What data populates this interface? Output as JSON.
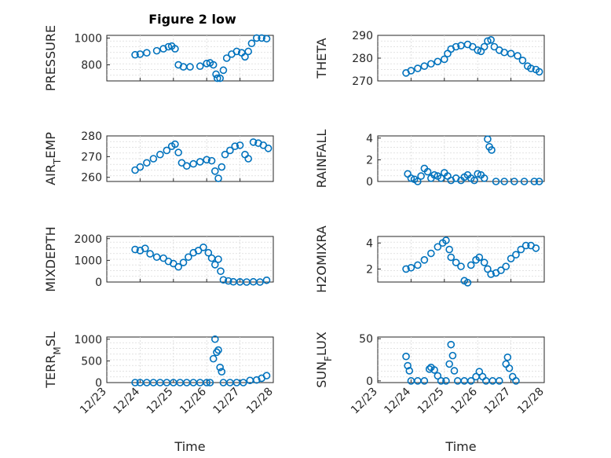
{
  "figure": {
    "title": "Figure 2 low"
  },
  "chart_data": [
    {
      "type": "scatter",
      "ylabel": "PRESSURE",
      "xlabel": "",
      "xlim": [
        0,
        5
      ],
      "ylim": [
        680,
        1020
      ],
      "yticks": [
        800,
        1000
      ],
      "x_ticks": [
        "12/23",
        "12/24",
        "12/25",
        "12/26",
        "12/27",
        "12/28"
      ],
      "x_ticklabels_shown": false,
      "grid": true,
      "color": "#0072BD",
      "points": [
        [
          0.85,
          875
        ],
        [
          1.0,
          880
        ],
        [
          1.2,
          890
        ],
        [
          1.5,
          905
        ],
        [
          1.7,
          920
        ],
        [
          1.85,
          935
        ],
        [
          1.95,
          940
        ],
        [
          2.05,
          920
        ],
        [
          2.15,
          800
        ],
        [
          2.3,
          785
        ],
        [
          2.5,
          785
        ],
        [
          2.8,
          790
        ],
        [
          3.0,
          810
        ],
        [
          3.1,
          815
        ],
        [
          3.2,
          800
        ],
        [
          3.28,
          730
        ],
        [
          3.32,
          700
        ],
        [
          3.4,
          700
        ],
        [
          3.5,
          760
        ],
        [
          3.6,
          850
        ],
        [
          3.75,
          880
        ],
        [
          3.9,
          900
        ],
        [
          4.05,
          890
        ],
        [
          4.15,
          860
        ],
        [
          4.25,
          900
        ],
        [
          4.35,
          960
        ],
        [
          4.5,
          1000
        ],
        [
          4.65,
          1000
        ],
        [
          4.8,
          995
        ]
      ]
    },
    {
      "type": "scatter",
      "ylabel": "THETA",
      "xlabel": "",
      "xlim": [
        0,
        5
      ],
      "ylim": [
        270,
        290
      ],
      "yticks": [
        270,
        280,
        290
      ],
      "x_ticks": [
        "12/23",
        "12/24",
        "12/25",
        "12/26",
        "12/27",
        "12/28"
      ],
      "x_ticklabels_shown": false,
      "grid": true,
      "color": "#0072BD",
      "points": [
        [
          0.85,
          273.5
        ],
        [
          1.0,
          274.5
        ],
        [
          1.2,
          275.5
        ],
        [
          1.4,
          276.5
        ],
        [
          1.6,
          277.5
        ],
        [
          1.8,
          278.5
        ],
        [
          2.0,
          279.5
        ],
        [
          2.1,
          282.0
        ],
        [
          2.2,
          284.0
        ],
        [
          2.35,
          285.0
        ],
        [
          2.5,
          285.5
        ],
        [
          2.7,
          286.0
        ],
        [
          2.85,
          285.0
        ],
        [
          3.0,
          283.5
        ],
        [
          3.1,
          283.0
        ],
        [
          3.2,
          285.0
        ],
        [
          3.3,
          287.5
        ],
        [
          3.4,
          288.0
        ],
        [
          3.5,
          285.0
        ],
        [
          3.65,
          283.5
        ],
        [
          3.8,
          282.5
        ],
        [
          4.0,
          282.0
        ],
        [
          4.2,
          281.0
        ],
        [
          4.35,
          279.0
        ],
        [
          4.5,
          276.5
        ],
        [
          4.6,
          275.5
        ],
        [
          4.75,
          275.0
        ],
        [
          4.85,
          274.0
        ]
      ]
    },
    {
      "type": "scatter",
      "ylabel": "AIR_TEMP",
      "ylabel_parts": [
        "AIR",
        "T",
        "EMP"
      ],
      "xlabel": "",
      "xlim": [
        0,
        5
      ],
      "ylim": [
        258,
        280
      ],
      "yticks": [
        260,
        270,
        280
      ],
      "x_ticks": [
        "12/23",
        "12/24",
        "12/25",
        "12/26",
        "12/27",
        "12/28"
      ],
      "x_ticklabels_shown": false,
      "grid": true,
      "color": "#0072BD",
      "points": [
        [
          0.85,
          263.5
        ],
        [
          1.0,
          265.0
        ],
        [
          1.2,
          267.0
        ],
        [
          1.4,
          269.0
        ],
        [
          1.6,
          271.0
        ],
        [
          1.8,
          273.0
        ],
        [
          1.95,
          275.0
        ],
        [
          2.05,
          276.0
        ],
        [
          2.15,
          272.0
        ],
        [
          2.25,
          267.0
        ],
        [
          2.4,
          265.5
        ],
        [
          2.6,
          266.5
        ],
        [
          2.8,
          267.5
        ],
        [
          3.0,
          268.5
        ],
        [
          3.15,
          268.0
        ],
        [
          3.25,
          263.0
        ],
        [
          3.35,
          259.5
        ],
        [
          3.45,
          265.0
        ],
        [
          3.55,
          271.0
        ],
        [
          3.7,
          273.0
        ],
        [
          3.85,
          275.0
        ],
        [
          4.0,
          275.5
        ],
        [
          4.15,
          271.0
        ],
        [
          4.25,
          269.0
        ],
        [
          4.4,
          277.0
        ],
        [
          4.55,
          276.5
        ],
        [
          4.7,
          275.5
        ],
        [
          4.85,
          274.0
        ]
      ]
    },
    {
      "type": "scatter",
      "ylabel": "RAINFALL",
      "xlabel": "",
      "xlim": [
        0,
        5
      ],
      "ylim": [
        0,
        4.2
      ],
      "yticks": [
        0,
        2,
        4
      ],
      "x_ticks": [
        "12/23",
        "12/24",
        "12/25",
        "12/26",
        "12/27",
        "12/28"
      ],
      "x_ticklabels_shown": false,
      "grid": true,
      "color": "#0072BD",
      "points": [
        [
          0.9,
          0.7
        ],
        [
          1.0,
          0.3
        ],
        [
          1.1,
          0.2
        ],
        [
          1.2,
          0.0
        ],
        [
          1.3,
          0.5
        ],
        [
          1.4,
          1.2
        ],
        [
          1.5,
          0.9
        ],
        [
          1.6,
          0.3
        ],
        [
          1.7,
          0.6
        ],
        [
          1.8,
          0.5
        ],
        [
          1.9,
          0.3
        ],
        [
          2.0,
          0.8
        ],
        [
          2.1,
          0.5
        ],
        [
          2.2,
          0.1
        ],
        [
          2.35,
          0.3
        ],
        [
          2.5,
          0.1
        ],
        [
          2.6,
          0.4
        ],
        [
          2.7,
          0.6
        ],
        [
          2.8,
          0.3
        ],
        [
          2.9,
          0.1
        ],
        [
          3.0,
          0.7
        ],
        [
          3.1,
          0.6
        ],
        [
          3.2,
          0.3
        ],
        [
          3.3,
          3.9
        ],
        [
          3.35,
          3.2
        ],
        [
          3.42,
          2.9
        ],
        [
          3.55,
          0.0
        ],
        [
          3.8,
          0.0
        ],
        [
          4.1,
          0.0
        ],
        [
          4.4,
          0.0
        ],
        [
          4.7,
          0.0
        ],
        [
          4.85,
          0.0
        ]
      ]
    },
    {
      "type": "scatter",
      "ylabel": "MIXDEPTH",
      "xlabel": "",
      "xlim": [
        0,
        5
      ],
      "ylim": [
        0,
        2100
      ],
      "yticks": [
        0,
        1000,
        2000
      ],
      "x_ticks": [
        "12/23",
        "12/24",
        "12/25",
        "12/26",
        "12/27",
        "12/28"
      ],
      "x_ticklabels_shown": false,
      "grid": true,
      "color": "#0072BD",
      "points": [
        [
          0.85,
          1500
        ],
        [
          1.0,
          1450
        ],
        [
          1.15,
          1550
        ],
        [
          1.3,
          1300
        ],
        [
          1.5,
          1150
        ],
        [
          1.7,
          1100
        ],
        [
          1.85,
          950
        ],
        [
          2.0,
          850
        ],
        [
          2.15,
          700
        ],
        [
          2.3,
          900
        ],
        [
          2.45,
          1150
        ],
        [
          2.6,
          1350
        ],
        [
          2.75,
          1450
        ],
        [
          2.9,
          1600
        ],
        [
          3.05,
          1350
        ],
        [
          3.15,
          1100
        ],
        [
          3.25,
          800
        ],
        [
          3.35,
          1050
        ],
        [
          3.42,
          500
        ],
        [
          3.5,
          100
        ],
        [
          3.65,
          50
        ],
        [
          3.8,
          10
        ],
        [
          4.0,
          5
        ],
        [
          4.2,
          0
        ],
        [
          4.4,
          10
        ],
        [
          4.6,
          0
        ],
        [
          4.8,
          80
        ]
      ]
    },
    {
      "type": "scatter",
      "ylabel": "H2OMIXRA",
      "xlabel": "",
      "xlim": [
        0,
        5
      ],
      "ylim": [
        1,
        4.5
      ],
      "yticks": [
        2,
        4
      ],
      "x_ticks": [
        "12/23",
        "12/24",
        "12/25",
        "12/26",
        "12/27",
        "12/28"
      ],
      "x_ticklabels_shown": false,
      "grid": true,
      "color": "#0072BD",
      "points": [
        [
          0.85,
          2.0
        ],
        [
          1.0,
          2.1
        ],
        [
          1.2,
          2.3
        ],
        [
          1.4,
          2.7
        ],
        [
          1.6,
          3.2
        ],
        [
          1.8,
          3.7
        ],
        [
          1.95,
          4.0
        ],
        [
          2.05,
          4.2
        ],
        [
          2.15,
          3.5
        ],
        [
          2.2,
          2.9
        ],
        [
          2.35,
          2.5
        ],
        [
          2.5,
          2.2
        ],
        [
          2.6,
          1.1
        ],
        [
          2.7,
          0.95
        ],
        [
          2.8,
          2.3
        ],
        [
          2.95,
          2.7
        ],
        [
          3.05,
          2.9
        ],
        [
          3.2,
          2.5
        ],
        [
          3.3,
          2.0
        ],
        [
          3.4,
          1.6
        ],
        [
          3.55,
          1.7
        ],
        [
          3.7,
          1.9
        ],
        [
          3.85,
          2.2
        ],
        [
          4.0,
          2.8
        ],
        [
          4.15,
          3.1
        ],
        [
          4.3,
          3.5
        ],
        [
          4.45,
          3.8
        ],
        [
          4.6,
          3.8
        ],
        [
          4.75,
          3.6
        ]
      ]
    },
    {
      "type": "scatter",
      "ylabel": "TERR_MSL",
      "ylabel_parts": [
        "TERR",
        "M",
        "SL"
      ],
      "xlabel": "Time",
      "xlim": [
        0,
        5
      ],
      "ylim": [
        0,
        1050
      ],
      "yticks": [
        0,
        500,
        1000
      ],
      "x_ticks": [
        "12/23",
        "12/24",
        "12/25",
        "12/26",
        "12/27",
        "12/28"
      ],
      "x_ticklabels_shown": true,
      "grid": true,
      "color": "#0072BD",
      "points": [
        [
          0.85,
          0
        ],
        [
          1.0,
          0
        ],
        [
          1.2,
          0
        ],
        [
          1.4,
          0
        ],
        [
          1.6,
          0
        ],
        [
          1.8,
          0
        ],
        [
          2.0,
          0
        ],
        [
          2.2,
          0
        ],
        [
          2.4,
          0
        ],
        [
          2.6,
          0
        ],
        [
          2.8,
          0
        ],
        [
          3.0,
          0
        ],
        [
          3.1,
          0
        ],
        [
          3.2,
          550
        ],
        [
          3.25,
          1000
        ],
        [
          3.3,
          700
        ],
        [
          3.35,
          750
        ],
        [
          3.4,
          350
        ],
        [
          3.45,
          250
        ],
        [
          3.5,
          0
        ],
        [
          3.7,
          0
        ],
        [
          3.9,
          0
        ],
        [
          4.1,
          0
        ],
        [
          4.3,
          50
        ],
        [
          4.5,
          60
        ],
        [
          4.65,
          100
        ],
        [
          4.8,
          160
        ]
      ]
    },
    {
      "type": "scatter",
      "ylabel": "SUN_FLUX",
      "ylabel_parts": [
        "SUN",
        "F",
        "LUX"
      ],
      "xlabel": "Time",
      "xlim": [
        0,
        5
      ],
      "ylim": [
        -2,
        52
      ],
      "yticks": [
        0,
        50
      ],
      "x_ticks": [
        "12/23",
        "12/24",
        "12/25",
        "12/26",
        "12/27",
        "12/28"
      ],
      "x_ticklabels_shown": true,
      "grid": true,
      "color": "#0072BD",
      "points": [
        [
          0.85,
          29
        ],
        [
          0.9,
          18
        ],
        [
          0.95,
          12
        ],
        [
          1.0,
          0
        ],
        [
          1.2,
          0
        ],
        [
          1.4,
          0
        ],
        [
          1.55,
          14
        ],
        [
          1.6,
          16
        ],
        [
          1.7,
          13
        ],
        [
          1.8,
          6
        ],
        [
          1.9,
          0
        ],
        [
          2.05,
          0
        ],
        [
          2.15,
          20
        ],
        [
          2.2,
          43
        ],
        [
          2.25,
          30
        ],
        [
          2.3,
          12
        ],
        [
          2.4,
          0
        ],
        [
          2.6,
          0
        ],
        [
          2.8,
          0
        ],
        [
          2.95,
          5
        ],
        [
          3.05,
          11
        ],
        [
          3.15,
          5
        ],
        [
          3.25,
          0
        ],
        [
          3.45,
          0
        ],
        [
          3.65,
          0
        ],
        [
          3.85,
          20
        ],
        [
          3.9,
          28
        ],
        [
          3.95,
          15
        ],
        [
          4.05,
          5
        ],
        [
          4.15,
          0
        ]
      ]
    }
  ]
}
